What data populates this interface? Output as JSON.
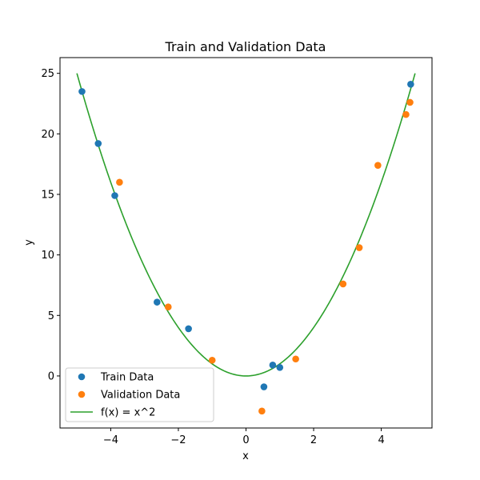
{
  "chart_data": {
    "type": "scatter",
    "title": "Train and Validation Data",
    "xlabel": "x",
    "ylabel": "y",
    "xlim": [
      -5.5,
      5.5
    ],
    "ylim": [
      -4.3,
      26.3
    ],
    "xticks": [
      -4,
      -2,
      0,
      2,
      4
    ],
    "yticks": [
      0,
      5,
      10,
      15,
      20,
      25
    ],
    "grid": false,
    "legend_position": "lower-left",
    "series": [
      {
        "name": "Train Data",
        "kind": "points",
        "color": "#1f77b4",
        "points": [
          [
            -4.85,
            23.5
          ],
          [
            -4.37,
            19.2
          ],
          [
            -3.88,
            14.9
          ],
          [
            -2.63,
            6.1
          ],
          [
            -1.7,
            3.9
          ],
          [
            0.53,
            -0.9
          ],
          [
            0.79,
            0.9
          ],
          [
            1.0,
            0.7
          ],
          [
            4.87,
            24.1
          ]
        ]
      },
      {
        "name": "Validation Data",
        "kind": "points",
        "color": "#ff7f0e",
        "points": [
          [
            -3.74,
            16.0
          ],
          [
            -2.3,
            5.7
          ],
          [
            -1.0,
            1.3
          ],
          [
            0.47,
            -2.9
          ],
          [
            1.47,
            1.4
          ],
          [
            2.87,
            7.6
          ],
          [
            3.35,
            10.6
          ],
          [
            3.9,
            17.4
          ],
          [
            4.73,
            21.6
          ],
          [
            4.85,
            22.6
          ]
        ]
      },
      {
        "name": "f(x) = x^2",
        "kind": "line",
        "color": "#2ca02c",
        "function": "x^2",
        "domain": [
          -5,
          5
        ]
      }
    ]
  }
}
